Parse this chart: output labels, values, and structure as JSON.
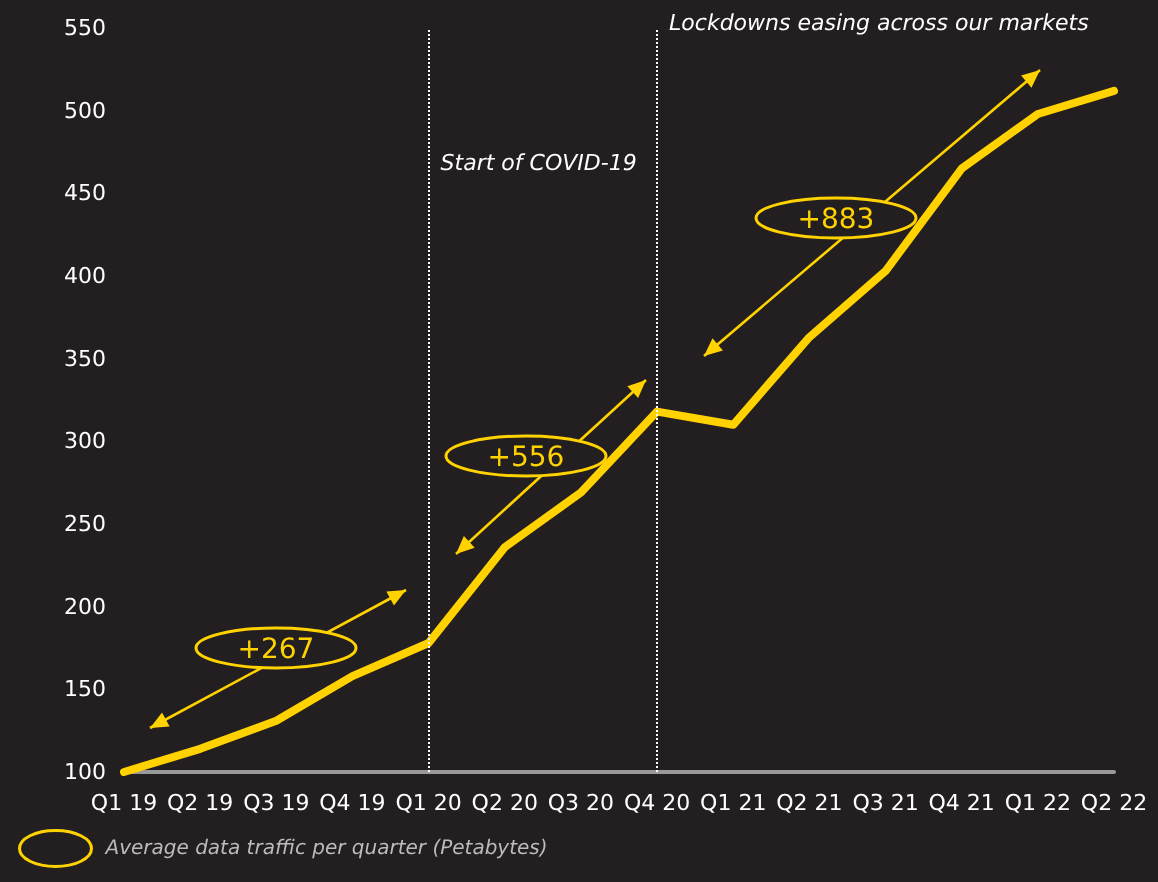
{
  "chart_data": {
    "type": "line",
    "categories": [
      "Q1 19",
      "Q2 19",
      "Q3 19",
      "Q4 19",
      "Q1 20",
      "Q2 20",
      "Q3 20",
      "Q4 20",
      "Q1 21",
      "Q2 21",
      "Q3 21",
      "Q4 21",
      "Q1 22",
      "Q2 22"
    ],
    "series": [
      {
        "name": "Average data traffic per quarter (Petabytes)",
        "color": "#ffd200",
        "values": [
          100,
          114,
          131,
          158,
          178,
          236,
          269,
          318,
          310,
          363,
          403,
          465,
          498,
          512
        ]
      }
    ],
    "ylim": [
      100,
      550
    ],
    "yticks": [
      100,
      150,
      200,
      250,
      300,
      350,
      400,
      450,
      500,
      550
    ],
    "grid": false,
    "legend": "bottom left",
    "marker": "none",
    "line_style": "solid",
    "ref_lines": [
      {
        "axis": "x",
        "value": "Q1 20",
        "label": "Start of COVID-19",
        "color": "#ffffff",
        "line_style": "dotted"
      },
      {
        "axis": "x",
        "value": "Q4 20",
        "label": "Lockdowns easing across our markets",
        "color": "#ffffff",
        "line_style": "dotted"
      }
    ],
    "annotations": [
      "+267",
      "+556",
      "+883"
    ]
  }
}
